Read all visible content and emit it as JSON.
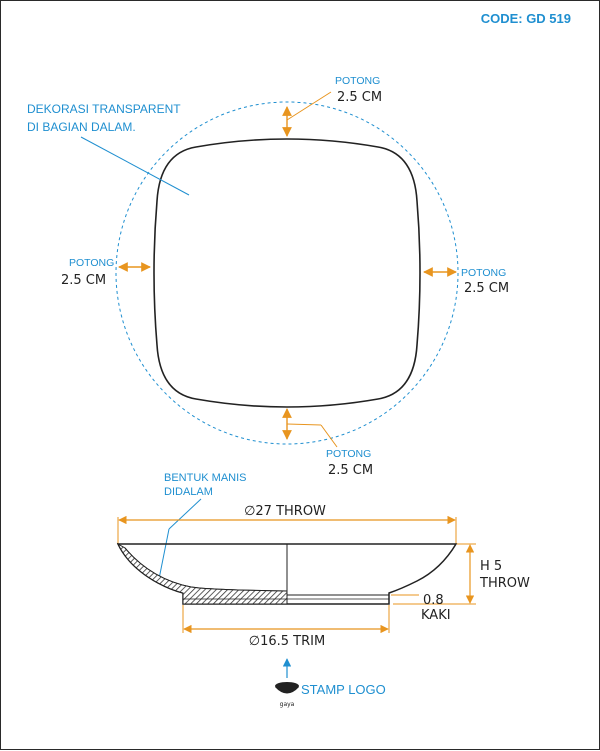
{
  "code": "CODE: GD 519",
  "top_view": {
    "note_line1": "DEKORASI TRANSPARENT",
    "note_line2": "DI BAGIAN DALAM.",
    "cuts": {
      "top": {
        "label": "POTONG",
        "value": "2.5 CM"
      },
      "left": {
        "label": "POTONG",
        "value": "2.5 CM"
      },
      "right": {
        "label": "POTONG",
        "value": "2.5 CM"
      },
      "bottom": {
        "label": "POTONG",
        "value": "2.5 CM"
      }
    }
  },
  "section_view": {
    "note_line1": "BENTUK MANIS",
    "note_line2": "DIDALAM",
    "diameter_throw": "∅27 THROW",
    "height_line1": "H 5",
    "height_line2": "THROW",
    "foot_value": "0.8",
    "foot_label": "KAKI",
    "diameter_trim": "∅16.5 TRIM"
  },
  "stamp": {
    "label": "STAMP LOGO",
    "logo_text": "gaya"
  },
  "colors": {
    "accent": "#1f8fd0",
    "dimension": "#e8951f",
    "outline": "#222222"
  }
}
